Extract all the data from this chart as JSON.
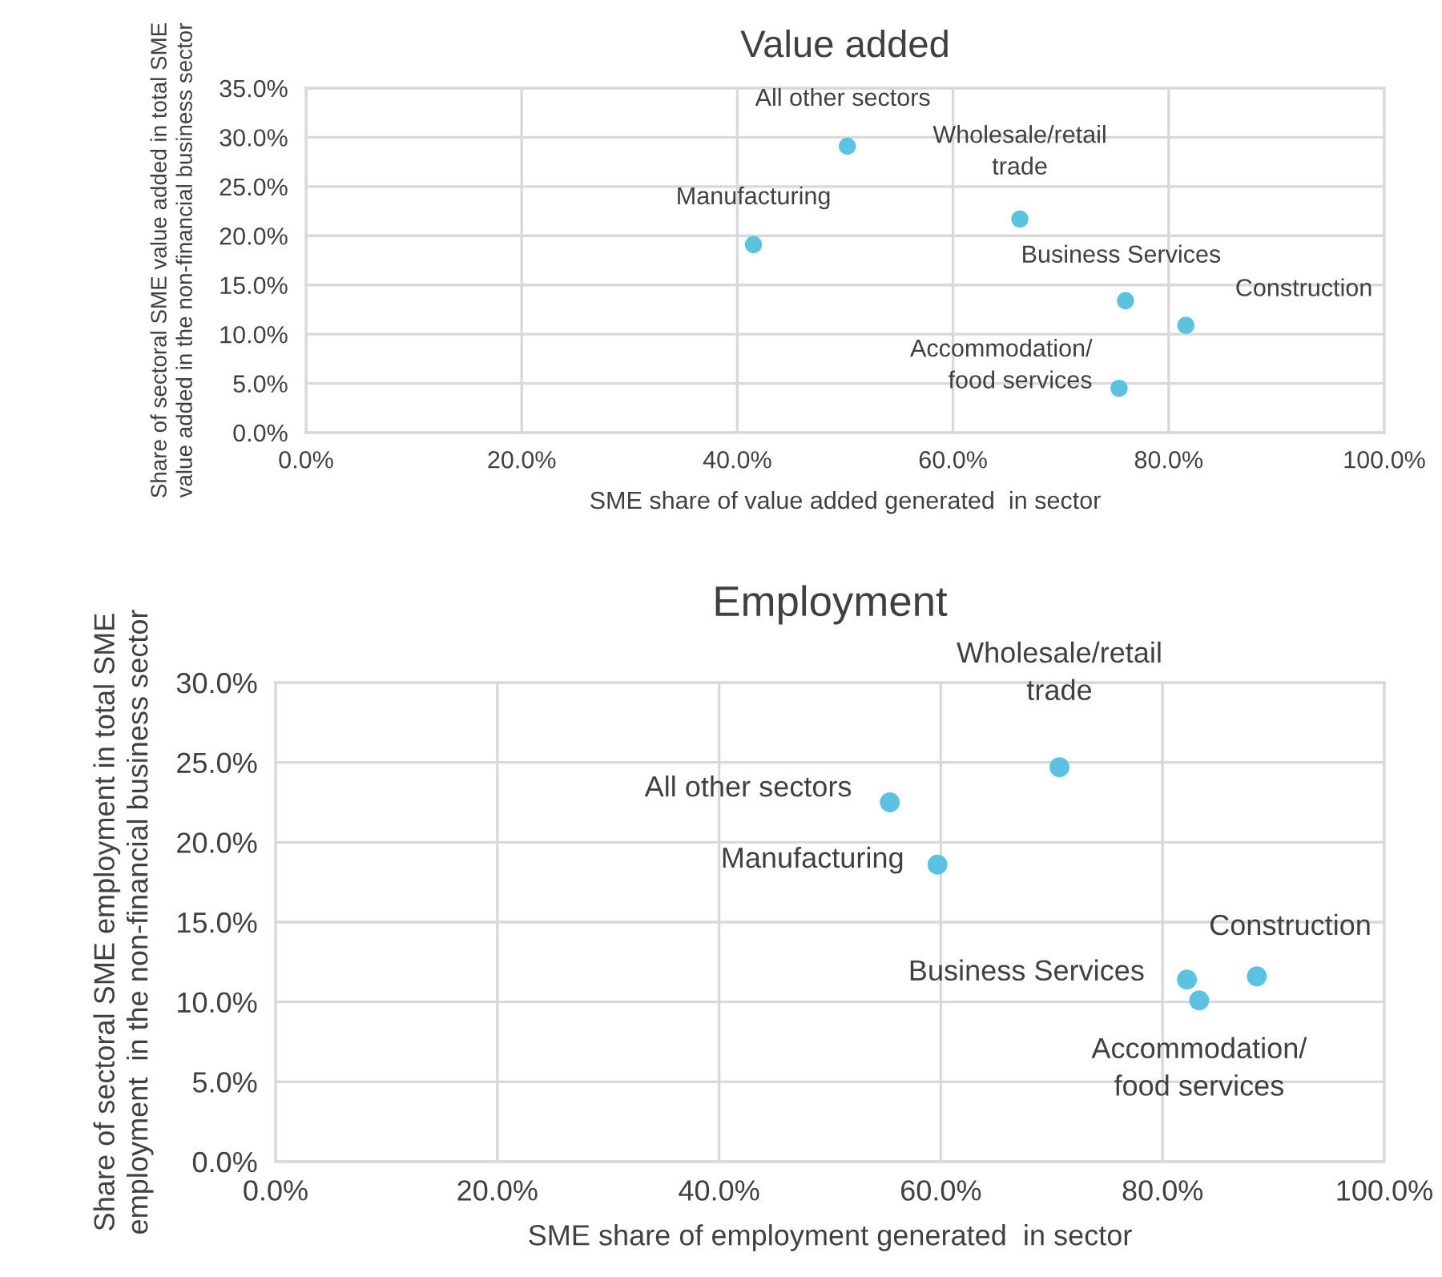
{
  "chart_data": [
    {
      "type": "scatter",
      "title": "Value added",
      "xlabel": "SME share of value added generated  in sector",
      "ylabel": "Share of sectoral SME value added in total SME value added in the non-financial business sector",
      "x": [
        50.2,
        66.2,
        41.5,
        76.0,
        81.6,
        75.4
      ],
      "series": [
        {
          "color": "#5bc3df",
          "values": [
            29.1,
            21.7,
            19.1,
            13.4,
            10.9,
            4.5
          ]
        }
      ],
      "marker": "circle",
      "grid": true,
      "xlim": [
        0,
        100
      ],
      "xticks": [
        {
          "value": 0,
          "label": "0.0%"
        },
        {
          "value": 20,
          "label": "20.0%"
        },
        {
          "value": 40,
          "label": "40.0%"
        },
        {
          "value": 60,
          "label": "60.0%"
        },
        {
          "value": 80,
          "label": "80.0%"
        },
        {
          "value": 100,
          "label": "100.0%"
        }
      ],
      "ylim": [
        0,
        35
      ],
      "yticks": [
        {
          "value": 0,
          "label": "0.0%"
        },
        {
          "value": 5,
          "label": "5.0%"
        },
        {
          "value": 10,
          "label": "10.0%"
        },
        {
          "value": 15,
          "label": "15.0%"
        },
        {
          "value": 20,
          "label": "20.0%"
        },
        {
          "value": 25,
          "label": "25.0%"
        },
        {
          "value": 30,
          "label": "30.0%"
        },
        {
          "value": 35,
          "label": "35.0%"
        }
      ],
      "annotations": [
        {
          "text": "All other sectors",
          "x": 50.2,
          "y": 29.1
        },
        {
          "text": "Wholesale/retail\ntrade",
          "x": 66.2,
          "y": 21.7
        },
        {
          "text": "Manufacturing",
          "x": 41.5,
          "y": 19.1
        },
        {
          "text": "Business Services",
          "x": 76.0,
          "y": 13.4
        },
        {
          "text": "Construction",
          "x": 81.6,
          "y": 10.9
        },
        {
          "text": "Accommodation/\nfood services",
          "x": 75.4,
          "y": 4.5
        }
      ]
    },
    {
      "type": "scatter",
      "title": "Employment",
      "xlabel": "SME share of employment generated  in sector",
      "ylabel": "Share of sectoral SME employment in total SME employment  in the non-financial business sector",
      "x": [
        70.7,
        55.4,
        59.7,
        82.2,
        88.5,
        83.3
      ],
      "series": [
        {
          "color": "#5bc3df",
          "values": [
            24.7,
            22.5,
            18.6,
            11.4,
            11.6,
            10.1
          ]
        }
      ],
      "marker": "circle",
      "grid": true,
      "xlim": [
        0,
        100
      ],
      "xticks": [
        {
          "value": 0,
          "label": "0.0%"
        },
        {
          "value": 20,
          "label": "20.0%"
        },
        {
          "value": 40,
          "label": "40.0%"
        },
        {
          "value": 60,
          "label": "60.0%"
        },
        {
          "value": 80,
          "label": "80.0%"
        },
        {
          "value": 100,
          "label": "100.0%"
        }
      ],
      "ylim": [
        0,
        30
      ],
      "yticks": [
        {
          "value": 0,
          "label": "0.0%"
        },
        {
          "value": 5,
          "label": "5.0%"
        },
        {
          "value": 10,
          "label": "10.0%"
        },
        {
          "value": 15,
          "label": "15.0%"
        },
        {
          "value": 20,
          "label": "20.0%"
        },
        {
          "value": 25,
          "label": "25.0%"
        },
        {
          "value": 30,
          "label": "30.0%"
        }
      ],
      "annotations": [
        {
          "text": "Wholesale/retail\ntrade",
          "x": 70.7,
          "y": 24.7
        },
        {
          "text": "All other sectors",
          "x": 55.4,
          "y": 22.5
        },
        {
          "text": "Manufacturing",
          "x": 59.7,
          "y": 18.6
        },
        {
          "text": "Business Services",
          "x": 82.2,
          "y": 11.4
        },
        {
          "text": "Construction",
          "x": 88.5,
          "y": 11.6
        },
        {
          "text": "Accommodation/\nfood services",
          "x": 83.3,
          "y": 10.1
        }
      ]
    }
  ]
}
